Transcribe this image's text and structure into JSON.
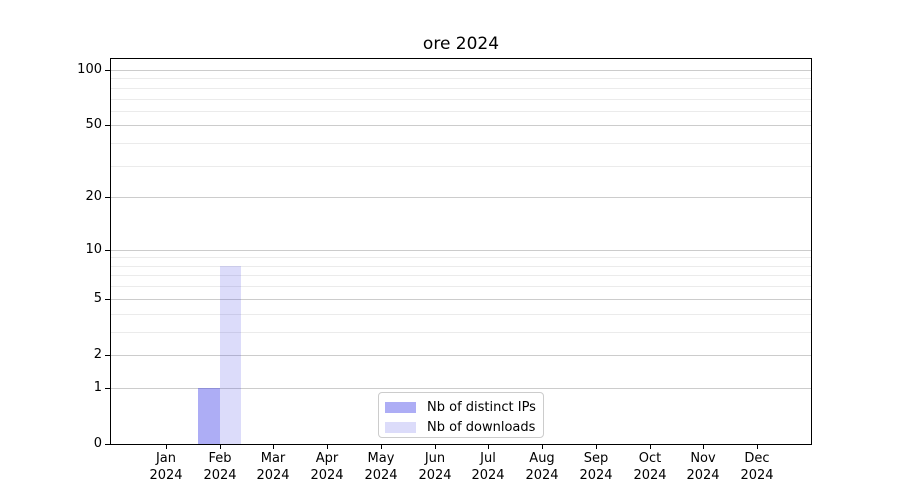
{
  "figure": {
    "background": "#ffffff",
    "axis_color": "#000000"
  },
  "chart_data": {
    "type": "bar",
    "title": "ore 2024",
    "xlabel": "",
    "ylabel": "",
    "categories": [
      "Jan 2024",
      "Feb 2024",
      "Mar 2024",
      "Apr 2024",
      "May 2024",
      "Jun 2024",
      "Jul 2024",
      "Aug 2024",
      "Sep 2024",
      "Oct 2024",
      "Nov 2024",
      "Dec 2024"
    ],
    "series": [
      {
        "name": "Nb of distinct IPs",
        "color_hex": "#aaaaf4",
        "fill": "rgba(60,60,230,0.42)",
        "values": [
          0,
          1,
          0,
          0,
          0,
          0,
          0,
          0,
          0,
          0,
          0,
          0
        ]
      },
      {
        "name": "Nb of downloads",
        "color_hex": "#dcdcfa",
        "fill": "rgba(60,60,230,0.18)",
        "values": [
          0,
          8,
          0,
          0,
          0,
          0,
          0,
          0,
          0,
          0,
          0,
          0
        ]
      }
    ],
    "y_axis": {
      "scale": "log1p",
      "major_ticks": [
        0,
        1,
        2,
        5,
        10,
        20,
        50,
        100
      ],
      "minor_ticks": [
        3,
        4,
        6,
        7,
        8,
        9,
        30,
        40,
        60,
        70,
        80,
        90
      ],
      "ylim": [
        0,
        116
      ]
    },
    "grid": {
      "enabled": true,
      "major_color": "#cccccc",
      "minor_color": "#ebebeb"
    },
    "legend": {
      "location": "lower center"
    }
  }
}
